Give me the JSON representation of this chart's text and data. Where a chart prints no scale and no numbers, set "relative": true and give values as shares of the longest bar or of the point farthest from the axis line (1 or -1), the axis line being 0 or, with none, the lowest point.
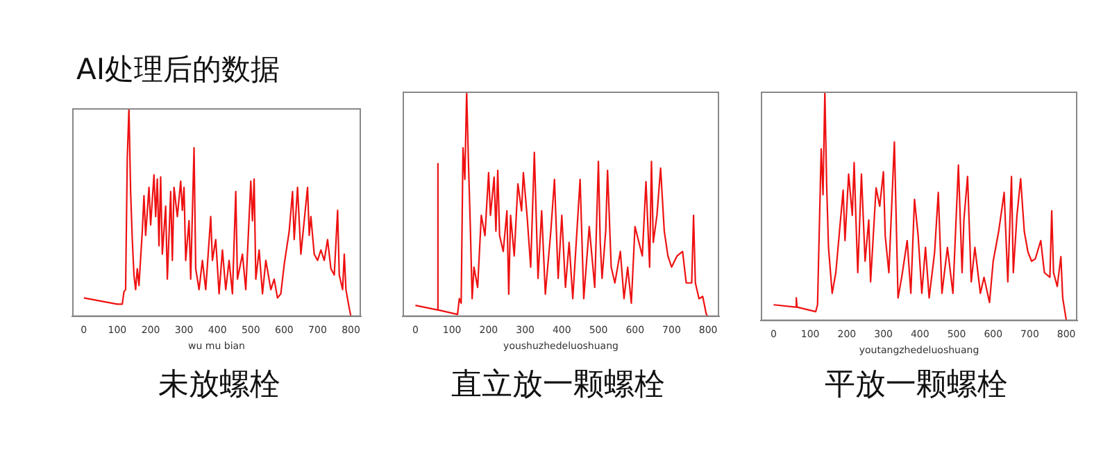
{
  "chart_data": [
    {
      "type": "line",
      "title": "未放螺栓",
      "xlabel": "wu mu bian",
      "annotations": [
        "AI处理后的数据"
      ],
      "relative": true,
      "xlim": [
        -35,
        830
      ],
      "xticks": [
        0,
        100,
        200,
        300,
        400,
        500,
        600,
        700,
        800
      ],
      "grid": false,
      "legend": false,
      "marker": "none",
      "line_style": "solid",
      "series": [
        {
          "color": "#ee1111",
          "x": [
            0,
            100,
            115,
            120,
            125,
            130,
            135,
            140,
            145,
            150,
            155,
            160,
            165,
            175,
            180,
            185,
            195,
            200,
            210,
            215,
            220,
            225,
            230,
            235,
            245,
            250,
            260,
            265,
            270,
            280,
            290,
            295,
            300,
            305,
            315,
            320,
            330,
            335,
            345,
            355,
            365,
            380,
            385,
            395,
            405,
            415,
            425,
            435,
            445,
            455,
            460,
            475,
            485,
            500,
            505,
            510,
            515,
            525,
            535,
            545,
            560,
            570,
            580,
            590,
            600,
            615,
            625,
            630,
            640,
            650,
            660,
            670,
            675,
            680,
            690,
            700,
            710,
            720,
            730,
            740,
            750,
            760,
            765,
            775,
            780,
            785,
            795,
            800
          ],
          "values": [
            0.09,
            0.06,
            0.06,
            0.12,
            0.13,
            0.76,
            1,
            0.6,
            0.37,
            0.2,
            0.13,
            0.23,
            0.15,
            0.41,
            0.58,
            0.39,
            0.62,
            0.44,
            0.68,
            0.48,
            0.66,
            0.34,
            0.67,
            0.3,
            0.53,
            0.18,
            0.6,
            0.27,
            0.62,
            0.48,
            0.65,
            0.51,
            0.62,
            0.27,
            0.46,
            0.18,
            0.81,
            0.23,
            0.13,
            0.27,
            0.13,
            0.48,
            0.27,
            0.37,
            0.11,
            0.32,
            0.13,
            0.27,
            0.11,
            0.6,
            0.18,
            0.3,
            0.13,
            0.65,
            0.46,
            0.66,
            0.18,
            0.32,
            0.11,
            0.27,
            0.13,
            0.18,
            0.09,
            0.11,
            0.25,
            0.41,
            0.6,
            0.37,
            0.62,
            0.3,
            0.46,
            0.62,
            0.39,
            0.48,
            0.3,
            0.27,
            0.32,
            0.27,
            0.37,
            0.23,
            0.2,
            0.51,
            0.2,
            0.13,
            0.3,
            0.13,
            0.04,
            0
          ]
        }
      ]
    },
    {
      "type": "line",
      "title": "直立放一颗螺栓",
      "xlabel": "youshuzhedeluoshuang",
      "relative": true,
      "xlim": [
        -35,
        830
      ],
      "xticks": [
        0,
        100,
        200,
        300,
        400,
        500,
        600,
        700,
        800
      ],
      "grid": false,
      "legend": false,
      "marker": "none",
      "line_style": "solid",
      "series": [
        {
          "color": "#ee1111",
          "x": [
            0,
            60,
            61,
            62,
            115,
            120,
            125,
            130,
            135,
            140,
            145,
            150,
            155,
            160,
            170,
            180,
            190,
            200,
            205,
            215,
            220,
            225,
            230,
            240,
            250,
            255,
            260,
            270,
            280,
            290,
            295,
            305,
            315,
            325,
            335,
            345,
            355,
            370,
            380,
            390,
            400,
            410,
            420,
            430,
            450,
            460,
            475,
            490,
            500,
            505,
            510,
            520,
            525,
            535,
            545,
            560,
            570,
            580,
            590,
            600,
            620,
            630,
            640,
            645,
            650,
            660,
            670,
            680,
            690,
            700,
            715,
            730,
            740,
            755,
            760,
            765,
            775,
            785,
            795,
            800
          ],
          "values": [
            0.05,
            0.03,
            0.68,
            0.03,
            0.01,
            0.08,
            0.06,
            0.75,
            0.61,
            1,
            0.68,
            0.4,
            0.08,
            0.22,
            0.13,
            0.45,
            0.36,
            0.64,
            0.45,
            0.62,
            0.38,
            0.65,
            0.36,
            0.29,
            0.47,
            0.1,
            0.45,
            0.27,
            0.59,
            0.47,
            0.64,
            0.45,
            0.22,
            0.73,
            0.17,
            0.47,
            0.1,
            0.38,
            0.61,
            0.17,
            0.45,
            0.13,
            0.33,
            0.08,
            0.61,
            0.08,
            0.4,
            0.13,
            0.69,
            0.33,
            0.17,
            0.38,
            0.65,
            0.22,
            0.15,
            0.29,
            0.08,
            0.22,
            0.06,
            0.4,
            0.27,
            0.6,
            0.22,
            0.69,
            0.33,
            0.45,
            0.66,
            0.38,
            0.27,
            0.22,
            0.27,
            0.29,
            0.15,
            0.15,
            0.45,
            0.15,
            0.08,
            0.09,
            0.01,
            0
          ]
        }
      ]
    },
    {
      "type": "line",
      "title": "平放一颗螺栓",
      "xlabel": "youtangzhedeluoshuang",
      "relative": true,
      "xlim": [
        -35,
        830
      ],
      "xticks": [
        0,
        100,
        200,
        300,
        400,
        500,
        600,
        700,
        800
      ],
      "grid": false,
      "legend": false,
      "marker": "none",
      "line_style": "solid",
      "series": [
        {
          "color": "#ee1111",
          "x": [
            0,
            60,
            62,
            64,
            115,
            120,
            130,
            135,
            140,
            145,
            150,
            160,
            170,
            180,
            190,
            195,
            205,
            215,
            220,
            225,
            230,
            240,
            250,
            260,
            265,
            280,
            290,
            300,
            305,
            315,
            330,
            340,
            350,
            365,
            375,
            385,
            395,
            405,
            415,
            425,
            440,
            450,
            460,
            475,
            490,
            505,
            515,
            520,
            530,
            540,
            550,
            565,
            575,
            590,
            600,
            615,
            630,
            640,
            650,
            655,
            665,
            675,
            685,
            695,
            705,
            715,
            730,
            740,
            755,
            760,
            765,
            775,
            785,
            790,
            800
          ],
          "values": [
            0.07,
            0.06,
            0.1,
            0.06,
            0.04,
            0.07,
            0.75,
            0.55,
            1,
            0.59,
            0.32,
            0.12,
            0.21,
            0.39,
            0.57,
            0.35,
            0.64,
            0.46,
            0.69,
            0.44,
            0.21,
            0.64,
            0.26,
            0.44,
            0.17,
            0.58,
            0.5,
            0.65,
            0.37,
            0.21,
            0.78,
            0.1,
            0.19,
            0.35,
            0.12,
            0.53,
            0.37,
            0.12,
            0.32,
            0.1,
            0.3,
            0.56,
            0.12,
            0.32,
            0.12,
            0.68,
            0.21,
            0.44,
            0.63,
            0.17,
            0.32,
            0.12,
            0.19,
            0.08,
            0.26,
            0.39,
            0.56,
            0.17,
            0.63,
            0.21,
            0.46,
            0.62,
            0.39,
            0.3,
            0.26,
            0.27,
            0.35,
            0.21,
            0.19,
            0.48,
            0.21,
            0.15,
            0.28,
            0.1,
            0
          ]
        }
      ]
    }
  ]
}
